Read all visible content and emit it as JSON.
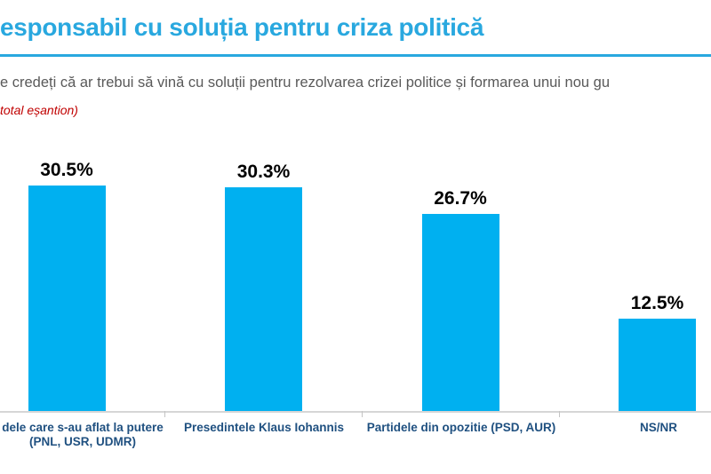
{
  "slide": {
    "title": "esponsabil cu soluția pentru criza politică",
    "question": "e credeți că ar trebui să vină cu soluții pentru rezolvarea crizei politice și formarea unui nou gu",
    "note": "total eșantion)"
  },
  "colors": {
    "accent_blue": "#29A8DF",
    "bar_blue": "#00B0F0",
    "category_label_blue": "#1F5080",
    "note_red": "#C00000",
    "question_gray": "#595959",
    "axis_gray": "#D6D6D6",
    "value_label_black": "#000000"
  },
  "chart_data": {
    "type": "bar",
    "title": "esponsabil cu soluția pentru criza politică",
    "categories": [
      "dele care s-au aflat la putere (PNL, USR, UDMR)",
      "Presedintele Klaus Iohannis",
      "Partidele din opozitie (PSD, AUR)",
      "NS/NR"
    ],
    "values": [
      30.5,
      30.3,
      26.7,
      12.5
    ],
    "value_labels": [
      "30.5%",
      "30.3%",
      "26.7%",
      "12.5%"
    ],
    "category_label_lines": [
      {
        "line1": "dele care s-au aflat la putere",
        "line2": "(PNL, USR, UDMR)"
      },
      {
        "line1": "Presedintele Klaus Iohannis"
      },
      {
        "line1": "Partidele din opozitie (PSD, AUR)"
      },
      {
        "line1": "NS/NR"
      }
    ],
    "xlabel": "",
    "ylabel": "",
    "ylim": [
      0,
      35
    ],
    "grid": false,
    "legend": false,
    "bar_color": "#00B0F0",
    "value_label_format": "percent"
  }
}
